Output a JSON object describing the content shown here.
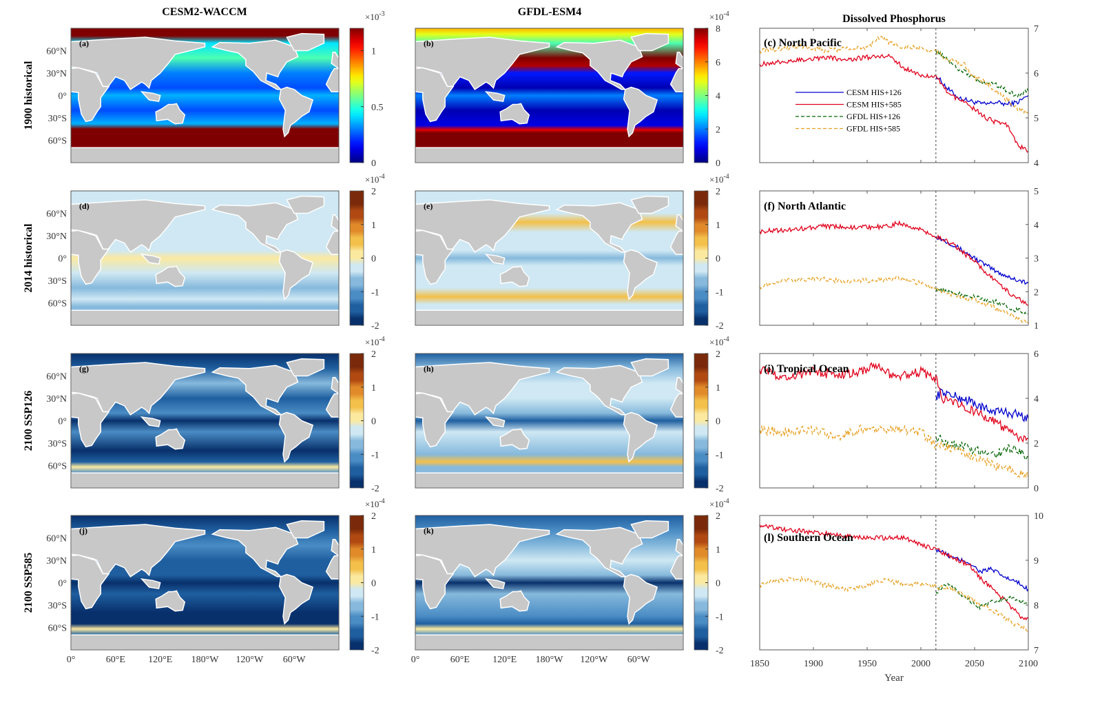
{
  "column_titles": [
    "CESM2-WACCM",
    "GFDL-ESM4",
    "Dissolved Phosphorus"
  ],
  "row_labels": [
    "1900 historical",
    "2014 historical",
    "2100 SSP126",
    "2100 SSP585"
  ],
  "map_lat_ticks": [
    "60°N",
    "30°N",
    "0°",
    "30°S",
    "60°S"
  ],
  "map_lon_ticks": [
    "0°",
    "60°E",
    "120°E",
    "180°W",
    "120°W",
    "60°W"
  ],
  "colors": {
    "land": "#c8c8c8",
    "coast": "#ffffff",
    "cesm126": "#0000cc",
    "cesm585": "#e0001a",
    "gfdl126": "#006400",
    "gfdl585": "#e8a020",
    "divider": "#444444"
  },
  "maps": [
    {
      "label": "(a)",
      "colormap": "jet",
      "ticks": [
        "0",
        "0.5",
        "1"
      ],
      "tick_values": [
        0,
        0.5,
        1
      ],
      "range": [
        0,
        1.2
      ],
      "exponent": "-3"
    },
    {
      "label": "(b)",
      "colormap": "jet",
      "ticks": [
        "0",
        "2",
        "4",
        "6",
        "8"
      ],
      "tick_values": [
        0,
        2,
        4,
        6,
        8
      ],
      "range": [
        0,
        8
      ],
      "exponent": "-4"
    },
    {
      "label": "(d)",
      "colormap": "diverging",
      "ticks": [
        "-2",
        "-1",
        "0",
        "1",
        "2"
      ],
      "tick_values": [
        -2,
        -1,
        0,
        1,
        2
      ],
      "range": [
        -2,
        2
      ],
      "exponent": "-4"
    },
    {
      "label": "(e)",
      "colormap": "diverging",
      "ticks": [
        "-2",
        "-1",
        "0",
        "1",
        "2"
      ],
      "tick_values": [
        -2,
        -1,
        0,
        1,
        2
      ],
      "range": [
        -2,
        2
      ],
      "exponent": "-4"
    },
    {
      "label": "(g)",
      "colormap": "diverging",
      "ticks": [
        "-2",
        "-1",
        "0",
        "1",
        "2"
      ],
      "tick_values": [
        -2,
        -1,
        0,
        1,
        2
      ],
      "range": [
        -2,
        2
      ],
      "exponent": "-4"
    },
    {
      "label": "(h)",
      "colormap": "diverging",
      "ticks": [
        "-2",
        "-1",
        "0",
        "1",
        "2"
      ],
      "tick_values": [
        -2,
        -1,
        0,
        1,
        2
      ],
      "range": [
        -2,
        2
      ],
      "exponent": "-4"
    },
    {
      "label": "(j)",
      "colormap": "diverging",
      "ticks": [
        "-2",
        "-1",
        "0",
        "1",
        "2"
      ],
      "tick_values": [
        -2,
        -1,
        0,
        1,
        2
      ],
      "range": [
        -2,
        2
      ],
      "exponent": "-4"
    },
    {
      "label": "(k)",
      "colormap": "diverging",
      "ticks": [
        "-2",
        "-1",
        "0",
        "1",
        "2"
      ],
      "tick_values": [
        -2,
        -1,
        0,
        1,
        2
      ],
      "range": [
        -2,
        2
      ],
      "exponent": "-4"
    }
  ],
  "chart_data": [
    {
      "type": "line",
      "title": "(c) North Pacific",
      "xlim": [
        1850,
        2100
      ],
      "ylim": [
        4,
        7
      ],
      "yticks": [
        4,
        5,
        6,
        7
      ],
      "divider_year": 2014,
      "legend": {
        "position": "center-left",
        "entries": [
          "CESM HIS+126",
          "CESM HIS+585",
          "GFDL HIS+126",
          "GFDL HIS+585"
        ]
      },
      "series": [
        {
          "name": "CESM HIS+126",
          "x": [
            2014,
            2025,
            2035,
            2050,
            2060,
            2070,
            2080,
            2090,
            2100
          ],
          "y": [
            5.95,
            5.65,
            5.45,
            5.35,
            5.3,
            5.35,
            5.3,
            5.35,
            5.5
          ]
        },
        {
          "name": "CESM HIS+585",
          "x": [
            1850,
            1870,
            1890,
            1910,
            1930,
            1950,
            1970,
            1985,
            2000,
            2014,
            2025,
            2040,
            2050,
            2060,
            2070,
            2080,
            2090,
            2100
          ],
          "y": [
            6.2,
            6.25,
            6.3,
            6.35,
            6.3,
            6.35,
            6.4,
            6.1,
            5.95,
            5.95,
            5.55,
            5.35,
            5.2,
            5.0,
            4.9,
            4.85,
            4.4,
            4.25
          ]
        },
        {
          "name": "GFDL HIS+126",
          "x": [
            2014,
            2025,
            2035,
            2050,
            2060,
            2070,
            2080,
            2090,
            2100
          ],
          "y": [
            6.5,
            6.3,
            6.1,
            5.9,
            5.75,
            5.75,
            5.6,
            5.5,
            5.6
          ]
        },
        {
          "name": "GFDL HIS+585",
          "x": [
            1850,
            1870,
            1890,
            1910,
            1930,
            1950,
            1960,
            1980,
            2000,
            2014,
            2025,
            2040,
            2050,
            2060,
            2070,
            2080,
            2090,
            2100
          ],
          "y": [
            6.5,
            6.55,
            6.6,
            6.5,
            6.55,
            6.55,
            6.8,
            6.6,
            6.55,
            6.5,
            6.3,
            6.2,
            5.9,
            5.8,
            5.6,
            5.4,
            5.2,
            5.1
          ]
        }
      ]
    },
    {
      "type": "line",
      "title": "(f) North Atlantic",
      "xlim": [
        1850,
        2100
      ],
      "ylim": [
        1,
        5
      ],
      "yticks": [
        1,
        2,
        3,
        4,
        5
      ],
      "divider_year": 2014,
      "series": [
        {
          "name": "CESM HIS+126",
          "x": [
            2014,
            2030,
            2050,
            2070,
            2085,
            2100
          ],
          "y": [
            3.65,
            3.4,
            3.0,
            2.6,
            2.4,
            2.25
          ]
        },
        {
          "name": "CESM HIS+585",
          "x": [
            1850,
            1880,
            1910,
            1940,
            1970,
            1980,
            2000,
            2014,
            2030,
            2050,
            2070,
            2085,
            2100
          ],
          "y": [
            3.8,
            3.85,
            3.95,
            3.9,
            3.95,
            4.05,
            3.85,
            3.65,
            3.4,
            2.9,
            2.3,
            1.9,
            1.6
          ]
        },
        {
          "name": "GFDL HIS+126",
          "x": [
            2014,
            2030,
            2050,
            2070,
            2085,
            2100
          ],
          "y": [
            2.1,
            1.95,
            1.85,
            1.7,
            1.5,
            1.35
          ]
        },
        {
          "name": "GFDL HIS+585",
          "x": [
            1850,
            1870,
            1900,
            1930,
            1960,
            1980,
            2000,
            2014,
            2030,
            2050,
            2070,
            2085,
            2100
          ],
          "y": [
            2.15,
            2.3,
            2.4,
            2.3,
            2.35,
            2.4,
            2.25,
            2.1,
            1.9,
            1.75,
            1.5,
            1.3,
            1.05
          ]
        }
      ]
    },
    {
      "type": "line",
      "title": "(i) Tropical Ocean",
      "xlim": [
        1850,
        2100
      ],
      "ylim": [
        0,
        6
      ],
      "yticks": [
        0,
        2,
        4,
        6
      ],
      "divider_year": 2014,
      "series": [
        {
          "name": "CESM HIS+126",
          "x": [
            2014,
            2020,
            2030,
            2045,
            2060,
            2075,
            2090,
            2100
          ],
          "y": [
            4.1,
            4.3,
            4.1,
            3.9,
            3.5,
            3.4,
            3.3,
            3.1
          ]
        },
        {
          "name": "CESM HIS+585",
          "x": [
            1850,
            1875,
            1900,
            1925,
            1950,
            1960,
            1975,
            2000,
            2014,
            2020,
            2035,
            2050,
            2065,
            2080,
            2090,
            2100
          ],
          "y": [
            5.3,
            4.9,
            5.2,
            5.0,
            5.3,
            5.5,
            4.9,
            5.2,
            4.9,
            4.0,
            3.8,
            3.4,
            3.1,
            2.6,
            2.2,
            2.2
          ]
        },
        {
          "name": "GFDL HIS+126",
          "x": [
            2014,
            2025,
            2040,
            2055,
            2070,
            2085,
            2100
          ],
          "y": [
            2.3,
            2.0,
            1.9,
            1.6,
            1.5,
            1.8,
            1.4
          ]
        },
        {
          "name": "GFDL HIS+585",
          "x": [
            1850,
            1875,
            1900,
            1925,
            1950,
            1975,
            2000,
            2014,
            2025,
            2040,
            2055,
            2070,
            2085,
            2100
          ],
          "y": [
            2.6,
            2.5,
            2.6,
            2.3,
            2.7,
            2.6,
            2.5,
            1.9,
            1.8,
            1.5,
            1.3,
            1.0,
            0.8,
            0.5
          ]
        }
      ]
    },
    {
      "type": "line",
      "title": "(l) Southern Ocean",
      "xlim": [
        1850,
        2100
      ],
      "ylim": [
        7,
        10
      ],
      "yticks": [
        7,
        8,
        9,
        10
      ],
      "divider_year": 2014,
      "xticks": [
        1850,
        1900,
        1950,
        2000,
        2050,
        2100
      ],
      "xlabel": "Year",
      "series": [
        {
          "name": "CESM HIS+126",
          "x": [
            2014,
            2030,
            2045,
            2055,
            2065,
            2080,
            2090,
            2100
          ],
          "y": [
            9.25,
            9.05,
            8.95,
            8.75,
            8.8,
            8.6,
            8.5,
            8.35
          ]
        },
        {
          "name": "CESM HIS+585",
          "x": [
            1850,
            1870,
            1890,
            1910,
            1930,
            1950,
            1970,
            1985,
            2000,
            2014,
            2030,
            2045,
            2055,
            2065,
            2080,
            2095,
            2100
          ],
          "y": [
            9.8,
            9.7,
            9.65,
            9.6,
            9.55,
            9.5,
            9.5,
            9.5,
            9.35,
            9.25,
            9.05,
            8.9,
            8.6,
            8.4,
            8.05,
            7.7,
            7.7
          ]
        },
        {
          "name": "GFDL HIS+126",
          "x": [
            2014,
            2025,
            2040,
            2055,
            2070,
            2085,
            2100
          ],
          "y": [
            8.3,
            8.45,
            8.2,
            7.95,
            8.1,
            8.15,
            8.0
          ]
        },
        {
          "name": "GFDL HIS+585",
          "x": [
            1850,
            1865,
            1885,
            1910,
            1935,
            1965,
            1990,
            2005,
            2014,
            2025,
            2040,
            2055,
            2070,
            2085,
            2100
          ],
          "y": [
            8.45,
            8.55,
            8.6,
            8.45,
            8.35,
            8.55,
            8.45,
            8.5,
            8.4,
            8.4,
            8.25,
            8.0,
            7.85,
            7.6,
            7.45
          ]
        }
      ]
    }
  ]
}
